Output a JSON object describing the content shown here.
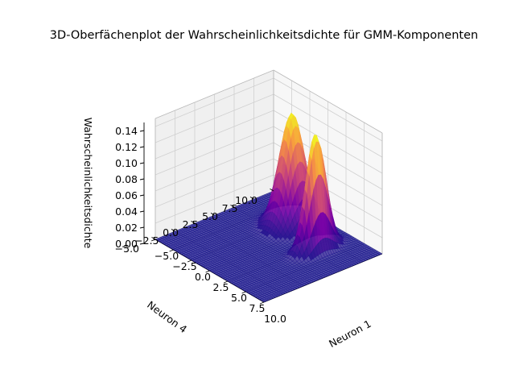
{
  "chart_data": {
    "type": "surface3d",
    "title": "3D-Oberfächenplot der Wahrscheinlichkeitsdichte für GMM-Komponenten",
    "xlabel": "Neuron 1",
    "ylabel": "Neuron 4",
    "zlabel": "Wahrscheinlichkeitsdichte",
    "xlim": [
      -5,
      10
    ],
    "ylim": [
      -5,
      10
    ],
    "zlim": [
      0,
      0.15
    ],
    "xticks": [
      "−5.0",
      "−2.5",
      "0.0",
      "2.5",
      "5.0",
      "7.5",
      "10.0"
    ],
    "yticks": [
      "−5.0",
      "−2.5",
      "0.0",
      "2.5",
      "5.0",
      "7.5",
      "10.0"
    ],
    "zticks": [
      "0.00",
      "0.02",
      "0.04",
      "0.06",
      "0.08",
      "0.10",
      "0.12",
      "0.14"
    ],
    "colormap": "plasma",
    "grid": true,
    "components": [
      {
        "mean_x": 0.8,
        "mean_y": 7.0,
        "peak": 0.139
      },
      {
        "mean_x": 5.6,
        "mean_y": 5.6,
        "peak": 0.145
      }
    ]
  }
}
